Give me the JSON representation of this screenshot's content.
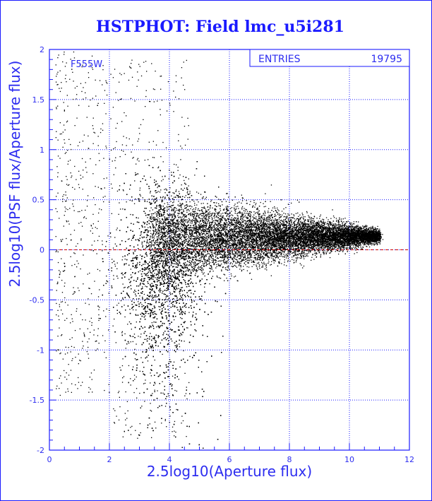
{
  "chart_data": {
    "type": "scatter",
    "title": "HSTPHOT: Field lmc_u5i281",
    "xlabel": "2.5log10(Aperture flux)",
    "ylabel": "2.5log10(PSF flux/Aperture flux)",
    "xlim": [
      0,
      12
    ],
    "ylim": [
      -2,
      2
    ],
    "x_ticks": [
      "0",
      "2",
      "4",
      "6",
      "8",
      "10",
      "12"
    ],
    "y_ticks": [
      "-2",
      "-1.5",
      "-1",
      "-0.5",
      "0",
      "0.5",
      "1",
      "1.5",
      "2"
    ],
    "grid": true,
    "reference_line_y": 0,
    "annotation": "F555W",
    "stats": {
      "label": "ENTRIES",
      "value": "19795"
    },
    "distribution": {
      "n_entries": 19795,
      "x_range": [
        0.2,
        11.4
      ],
      "dense_ridge": {
        "x_start": 3.3,
        "x_end": 11.0,
        "y_at_start": 0.12,
        "y_at_end": 0.14,
        "spread_at_start": 0.22,
        "spread_at_end": 0.03
      },
      "faint_cloud": {
        "x_center": 3.8,
        "x_spread": 0.8,
        "y_min": -2,
        "y_max": 0.9
      }
    },
    "points": []
  },
  "colors": {
    "frame": "#1a1aff",
    "grid": "#1a1aff",
    "points": "#000000",
    "zero_line": "#cc0000",
    "text": "#1a1aff"
  }
}
